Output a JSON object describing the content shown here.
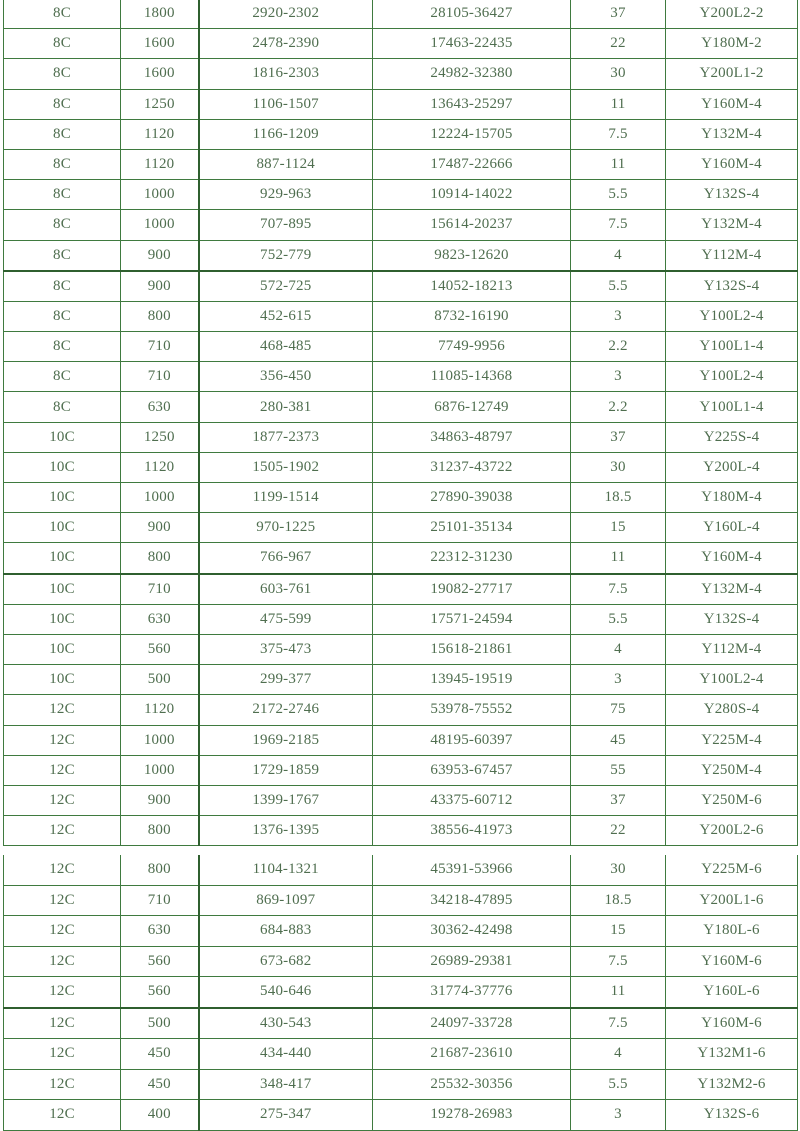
{
  "colors": {
    "grid": "#3f7a3f",
    "text": "#4f6e4f"
  },
  "table1": {
    "rows": [
      [
        "8C",
        "1800",
        "2920-2302",
        "28105-36427",
        "37",
        "Y200L2-2"
      ],
      [
        "8C",
        "1600",
        "2478-2390",
        "17463-22435",
        "22",
        "Y180M-2"
      ],
      [
        "8C",
        "1600",
        "1816-2303",
        "24982-32380",
        "30",
        "Y200L1-2"
      ],
      [
        "8C",
        "1250",
        "1106-1507",
        "13643-25297",
        "11",
        "Y160M-4"
      ],
      [
        "8C",
        "1120",
        "1166-1209",
        "12224-15705",
        "7.5",
        "Y132M-4"
      ],
      [
        "8C",
        "1120",
        "887-1124",
        "17487-22666",
        "11",
        "Y160M-4"
      ],
      [
        "8C",
        "1000",
        "929-963",
        "10914-14022",
        "5.5",
        "Y132S-4"
      ],
      [
        "8C",
        "1000",
        "707-895",
        "15614-20237",
        "7.5",
        "Y132M-4"
      ],
      [
        "8C",
        "900",
        "752-779",
        "9823-12620",
        "4",
        "Y112M-4"
      ],
      [
        "8C",
        "900",
        "572-725",
        "14052-18213",
        "5.5",
        "Y132S-4"
      ],
      [
        "8C",
        "800",
        "452-615",
        "8732-16190",
        "3",
        "Y100L2-4"
      ],
      [
        "8C",
        "710",
        "468-485",
        "7749-9956",
        "2.2",
        "Y100L1-4"
      ],
      [
        "8C",
        "710",
        "356-450",
        "11085-14368",
        "3",
        "Y100L2-4"
      ],
      [
        "8C",
        "630",
        "280-381",
        "6876-12749",
        "2.2",
        "Y100L1-4"
      ],
      [
        "10C",
        "1250",
        "1877-2373",
        "34863-48797",
        "37",
        "Y225S-4"
      ],
      [
        "10C",
        "1120",
        "1505-1902",
        "31237-43722",
        "30",
        "Y200L-4"
      ],
      [
        "10C",
        "1000",
        "1199-1514",
        "27890-39038",
        "18.5",
        "Y180M-4"
      ],
      [
        "10C",
        "900",
        "970-1225",
        "25101-35134",
        "15",
        "Y160L-4"
      ],
      [
        "10C",
        "800",
        "766-967",
        "22312-31230",
        "11",
        "Y160M-4"
      ],
      [
        "10C",
        "710",
        "603-761",
        "19082-27717",
        "7.5",
        "Y132M-4"
      ],
      [
        "10C",
        "630",
        "475-599",
        "17571-24594",
        "5.5",
        "Y132S-4"
      ],
      [
        "10C",
        "560",
        "375-473",
        "15618-21861",
        "4",
        "Y112M-4"
      ],
      [
        "10C",
        "500",
        "299-377",
        "13945-19519",
        "3",
        "Y100L2-4"
      ],
      [
        "12C",
        "1120",
        "2172-2746",
        "53978-75552",
        "75",
        "Y280S-4"
      ],
      [
        "12C",
        "1000",
        "1969-2185",
        "48195-60397",
        "45",
        "Y225M-4"
      ],
      [
        "12C",
        "1000",
        "1729-1859",
        "63953-67457",
        "55",
        "Y250M-4"
      ],
      [
        "12C",
        "900",
        "1399-1767",
        "43375-60712",
        "37",
        "Y250M-6"
      ],
      [
        "12C",
        "800",
        "1376-1395",
        "38556-41973",
        "22",
        "Y200L2-6"
      ]
    ]
  },
  "table2": {
    "rows": [
      [
        "12C",
        "800",
        "1104-1321",
        "45391-53966",
        "30",
        "Y225M-6"
      ],
      [
        "12C",
        "710",
        "869-1097",
        "34218-47895",
        "18.5",
        "Y200L1-6"
      ],
      [
        "12C",
        "630",
        "684-883",
        "30362-42498",
        "15",
        "Y180L-6"
      ],
      [
        "12C",
        "560",
        "673-682",
        "26989-29381",
        "7.5",
        "Y160M-6"
      ],
      [
        "12C",
        "560",
        "540-646",
        "31774-37776",
        "11",
        "Y160L-6"
      ],
      [
        "12C",
        "500",
        "430-543",
        "24097-33728",
        "7.5",
        "Y160M-6"
      ],
      [
        "12C",
        "450",
        "434-440",
        "21687-23610",
        "4",
        "Y132M1-6"
      ],
      [
        "12C",
        "450",
        "348-417",
        "25532-30356",
        "5.5",
        "Y132M2-6"
      ],
      [
        "12C",
        "400",
        "275-347",
        "19278-26983",
        "3",
        "Y132S-6"
      ]
    ]
  }
}
